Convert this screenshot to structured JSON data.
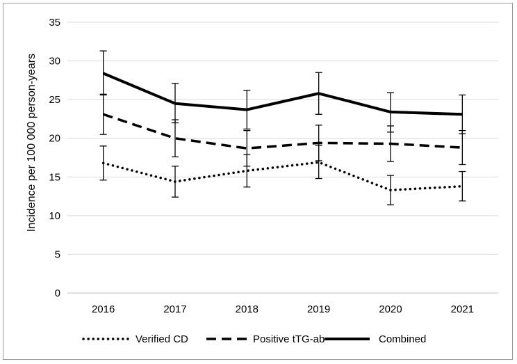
{
  "chart_data": {
    "type": "line",
    "title": "",
    "xlabel": "",
    "ylabel": "Incidence per 100 000 person-years",
    "categories": [
      "2016",
      "2017",
      "2018",
      "2019",
      "2020",
      "2021"
    ],
    "ylim": [
      0,
      35
    ],
    "yticks": [
      "0",
      "5",
      "10",
      "15",
      "20",
      "25",
      "30",
      "35"
    ],
    "grid": true,
    "legend_position": "bottom",
    "series": [
      {
        "name": "Verified CD",
        "style": "dotted",
        "values": [
          16.8,
          14.4,
          15.8,
          16.9,
          13.3,
          13.8
        ],
        "error_low": [
          14.6,
          12.4,
          13.7,
          14.8,
          11.4,
          11.9
        ],
        "error_high": [
          19.0,
          16.4,
          17.9,
          19.1,
          15.2,
          15.7
        ]
      },
      {
        "name": "Positive tTG-ab",
        "style": "dashed",
        "values": [
          23.1,
          20.0,
          18.7,
          19.4,
          19.3,
          18.8
        ],
        "error_low": [
          20.5,
          17.6,
          16.4,
          17.1,
          17.0,
          16.6
        ],
        "error_high": [
          25.7,
          22.4,
          21.0,
          21.7,
          21.6,
          21.0
        ]
      },
      {
        "name": "Combined",
        "style": "solid",
        "values": [
          28.4,
          24.5,
          23.7,
          25.8,
          23.4,
          23.1
        ],
        "error_low": [
          25.6,
          22.0,
          21.2,
          23.1,
          20.8,
          20.6
        ],
        "error_high": [
          31.3,
          27.1,
          26.2,
          28.5,
          25.9,
          25.6
        ]
      }
    ],
    "colors": {
      "line": "#000000",
      "grid": "#d9d9d9",
      "axis": "#bfbfbf"
    }
  }
}
